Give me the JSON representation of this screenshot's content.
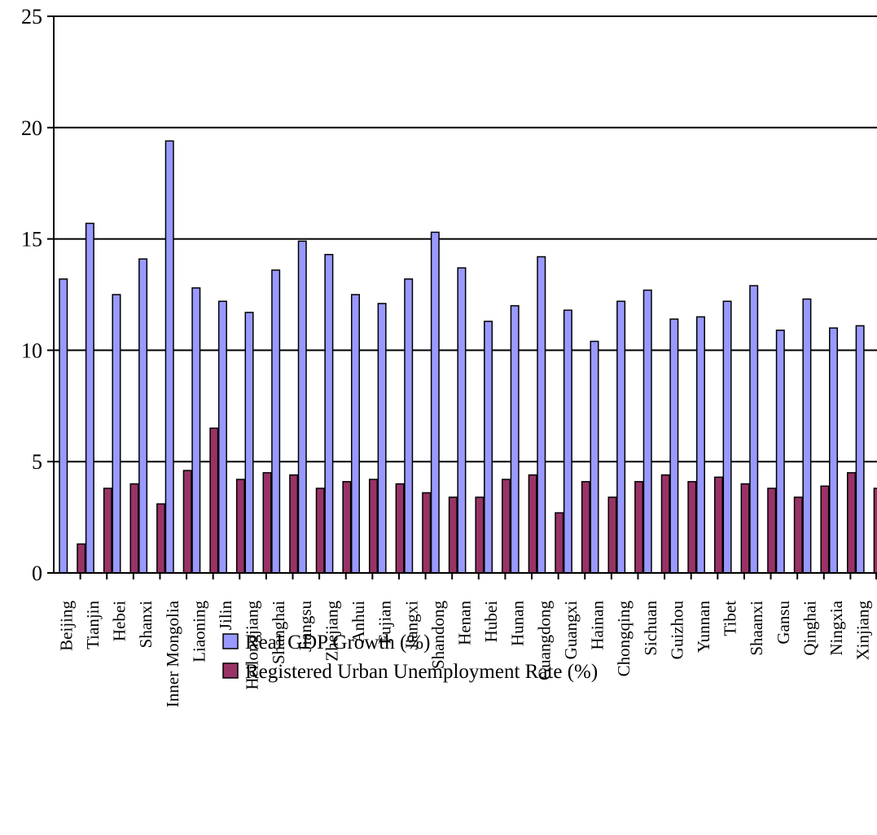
{
  "chart_data": {
    "type": "bar",
    "title": "",
    "xlabel": "",
    "ylabel": "",
    "ylim": [
      0,
      25
    ],
    "yticks": [
      0,
      5,
      10,
      15,
      20,
      25
    ],
    "grid": true,
    "legend_position": "bottom",
    "categories": [
      "Beijing",
      "Tianjin",
      "Hebei",
      "Shanxi",
      "Inner Mongolia",
      "Liaoning",
      "Jilin",
      "Heilongjiang",
      "Shanghai",
      "Jiangsu",
      "Zhejiang",
      "Anhui",
      "Fujian",
      "Jiangxi",
      "Shandong",
      "Henan",
      "Hubei",
      "Hunan",
      "Guangdong",
      "Guangxi",
      "Hainan",
      "Chongqing",
      "Sichuan",
      "Guizhou",
      "Yunnan",
      "Tibet",
      "Shaanxi",
      "Gansu",
      "Qinghai",
      "Ningxia",
      "Xinjiang"
    ],
    "series": [
      {
        "name": "Real GDP Growth (%)",
        "color": "#9999ff",
        "values": [
          13.2,
          15.7,
          12.5,
          14.1,
          19.4,
          12.8,
          12.2,
          11.7,
          13.6,
          14.9,
          14.3,
          12.5,
          12.1,
          13.2,
          15.3,
          13.7,
          11.3,
          12.0,
          14.2,
          11.8,
          10.4,
          12.2,
          12.7,
          11.4,
          11.5,
          12.2,
          12.9,
          10.9,
          12.3,
          11.0,
          11.1
        ]
      },
      {
        "name": "Registered Urban Unemployment Rate (%)",
        "color": "#993366",
        "values": [
          1.3,
          3.8,
          4.0,
          3.1,
          4.6,
          6.5,
          4.2,
          4.5,
          4.4,
          3.8,
          4.1,
          4.2,
          4.0,
          3.6,
          3.4,
          3.4,
          4.2,
          4.4,
          2.7,
          4.1,
          3.4,
          4.1,
          4.4,
          4.1,
          4.3,
          4.0,
          3.8,
          3.4,
          3.9,
          4.5,
          3.8
        ]
      }
    ]
  }
}
